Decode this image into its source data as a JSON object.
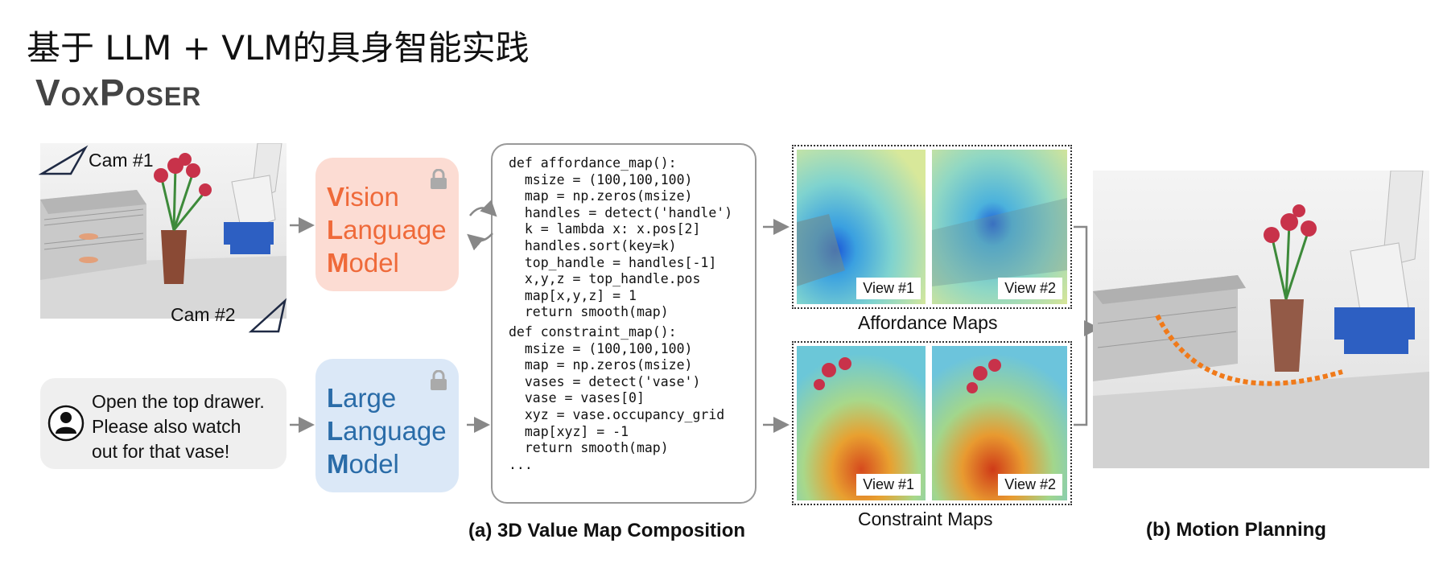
{
  "page": {
    "title": "基于 LLM + VLM的具身智能实践",
    "subtitle": "VoxPoser"
  },
  "scene": {
    "cam1_label": "Cam #1",
    "cam2_label": "Cam #2"
  },
  "vlm": {
    "lines": [
      {
        "cap": "V",
        "rest": "ision"
      },
      {
        "cap": "L",
        "rest": "anguage"
      },
      {
        "cap": "M",
        "rest": "odel"
      }
    ],
    "color": "#ef6a3a",
    "bg": "#fcdcd3"
  },
  "llm": {
    "lines": [
      {
        "cap": "L",
        "rest": "arge"
      },
      {
        "cap": "L",
        "rest": "anguage"
      },
      {
        "cap": "M",
        "rest": "odel"
      }
    ],
    "color": "#2a6ca8",
    "bg": "#dbe8f7"
  },
  "instruction": {
    "lines": [
      "Open the top drawer.",
      "Please also watch",
      "out for that vase!"
    ],
    "icon": "user-icon"
  },
  "code": {
    "lines": [
      "def affordance_map():",
      "  msize = (100,100,100)",
      "  map = np.zeros(msize)",
      "  handles = detect('handle')",
      "  k = lambda x: x.pos[2]",
      "  handles.sort(key=k)",
      "  top_handle = handles[-1]",
      "  x,y,z = top_handle.pos",
      "  map[x,y,z] = 1",
      "  return smooth(map)",
      "def constraint_map():",
      "  msize = (100,100,100)",
      "  map = np.zeros(msize)",
      "  vases = detect('vase')",
      "  vase = vases[0]",
      "  xyz = vase.occupancy_grid",
      "  map[xyz] = -1",
      "  return smooth(map)",
      "..."
    ]
  },
  "affordance": {
    "caption": "Affordance Maps",
    "views": [
      "View #1",
      "View #2"
    ]
  },
  "constraint": {
    "caption": "Constraint Maps",
    "views": [
      "View #1",
      "View #2"
    ]
  },
  "captions": {
    "a": "(a) 3D Value Map Composition",
    "b": "(b) Motion Planning"
  }
}
